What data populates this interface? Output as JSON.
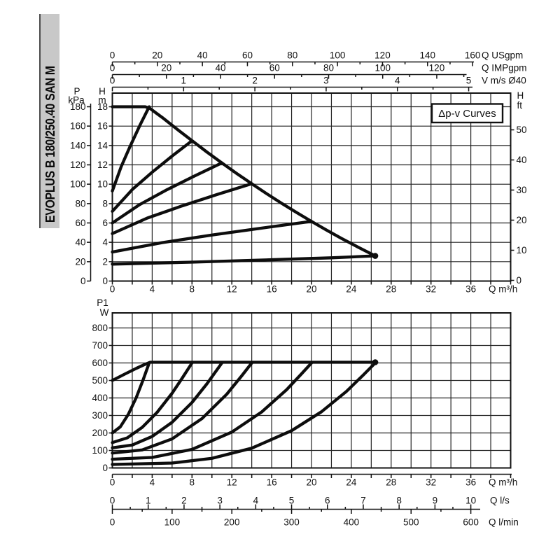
{
  "sidebar": {
    "model": "EVOPLUS B 180/250.40 SAN M"
  },
  "chart_data": [
    {
      "id": "head-chart",
      "type": "line",
      "annotation": "Δp-v Curves",
      "x_axis": {
        "label": "Q m³/h",
        "min": 0,
        "max": 40,
        "grid_step": 2,
        "label_step": 4,
        "labels": [
          0,
          4,
          8,
          12,
          16,
          20,
          24,
          28,
          32,
          36
        ]
      },
      "y_axis": {
        "label_lines": [
          "H",
          "m"
        ],
        "min": 0,
        "max": 18,
        "grid_step": 2,
        "labels": [
          0,
          2,
          4,
          6,
          8,
          10,
          12,
          14,
          16,
          18
        ]
      },
      "y_axis_kpa": {
        "label_lines": [
          "P",
          "kPa"
        ],
        "labels": [
          0,
          20,
          40,
          60,
          80,
          100,
          120,
          140,
          160,
          180
        ]
      },
      "y_axis_right": {
        "label_lines": [
          "H",
          "ft"
        ],
        "labels": [
          0,
          10,
          20,
          30,
          40,
          50
        ]
      },
      "top_axes": [
        {
          "label": "Q USgpm",
          "unit_to_m3h": 0.2261,
          "max_unit": 160,
          "minor_step": 10,
          "labels": [
            0,
            20,
            40,
            60,
            80,
            100,
            120,
            140,
            160
          ]
        },
        {
          "label": "Q IMPgpm",
          "unit_to_m3h": 0.2715,
          "max_unit": 130,
          "minor_step": 10,
          "labels": [
            0,
            20,
            40,
            60,
            80,
            100,
            120
          ]
        },
        {
          "label": "V m/s Ø40",
          "unit_to_m3h": 7.157,
          "max_unit": 5,
          "minor_step": 0.5,
          "labels": [
            0,
            1,
            2,
            3,
            4,
            5
          ]
        }
      ],
      "series": [
        {
          "name": "max-speed-head",
          "end_dot": true,
          "points": [
            [
              0,
              18
            ],
            [
              3.3,
              18
            ],
            [
              3.75,
              17.85
            ],
            [
              4.4,
              17.35
            ],
            [
              5,
              16.9
            ],
            [
              6.5,
              15.68
            ],
            [
              8,
              14.5
            ],
            [
              9.5,
              13.32
            ],
            [
              11,
              12.2
            ],
            [
              12.5,
              11.1
            ],
            [
              14,
              10.05
            ],
            [
              15.5,
              9.02
            ],
            [
              17,
              8.03
            ],
            [
              18.5,
              7.08
            ],
            [
              20,
              6.16
            ],
            [
              21.5,
              5.27
            ],
            [
              23,
              4.41
            ],
            [
              24.7,
              3.49
            ],
            [
              26.4,
              2.6
            ]
          ]
        },
        {
          "name": "dpv-head-1",
          "points": [
            [
              0,
              9.3
            ],
            [
              0.9,
              11.85
            ],
            [
              1.8,
              13.95
            ],
            [
              2.8,
              16.15
            ],
            [
              3.7,
              18
            ]
          ]
        },
        {
          "name": "dpv-head-2",
          "points": [
            [
              0,
              7.2
            ],
            [
              2,
              9.45
            ],
            [
              4,
              11.24
            ],
            [
              6,
              12.91
            ],
            [
              8,
              14.49
            ]
          ]
        },
        {
          "name": "dpv-head-3",
          "points": [
            [
              0,
              6.0
            ],
            [
              2.75,
              7.9
            ],
            [
              5.5,
              9.44
            ],
            [
              8.25,
              10.85
            ],
            [
              11,
              12.2
            ]
          ]
        },
        {
          "name": "dpv-head-4",
          "points": [
            [
              0,
              4.9
            ],
            [
              3.5,
              6.5
            ],
            [
              7,
              7.76
            ],
            [
              10.5,
              8.93
            ],
            [
              14,
              10.05
            ]
          ]
        },
        {
          "name": "dpv-head-5",
          "points": [
            [
              0,
              3.0
            ],
            [
              5,
              3.97
            ],
            [
              10,
              4.75
            ],
            [
              15,
              5.47
            ],
            [
              20,
              6.16
            ]
          ]
        },
        {
          "name": "dpv-head-6",
          "points": [
            [
              0,
              1.75
            ],
            [
              8,
              1.95
            ],
            [
              16,
              2.2
            ],
            [
              22,
              2.4
            ],
            [
              26.4,
              2.6
            ]
          ]
        }
      ]
    },
    {
      "id": "power-chart",
      "type": "line",
      "y_axis": {
        "label_lines": [
          "P1",
          "W"
        ],
        "min": 0,
        "max": 800,
        "grid_step": 100,
        "labels": [
          0,
          100,
          200,
          300,
          400,
          500,
          600,
          700,
          800
        ]
      },
      "x_axis": {
        "label": "Q m³/h",
        "min": 0,
        "max": 40,
        "grid_step": 2,
        "label_step": 4,
        "labels": [
          0,
          4,
          8,
          12,
          16,
          20,
          24,
          28,
          32,
          36
        ]
      },
      "bottom_axes": [
        {
          "label": "Q l/s",
          "unit_to_m3h": 3.6,
          "max_unit": 10,
          "minor_step": 0.5,
          "labels": [
            0,
            1,
            2,
            3,
            4,
            5,
            6,
            7,
            8,
            9,
            10
          ]
        },
        {
          "label": "Q l/min",
          "unit_to_m3h": 0.06,
          "max_unit": 600,
          "minor_step": 50,
          "labels": [
            0,
            100,
            200,
            300,
            400,
            500,
            600
          ]
        }
      ],
      "series": [
        {
          "name": "p1-max-speed",
          "end_dot": true,
          "points": [
            [
              0,
              500
            ],
            [
              1.2,
              535
            ],
            [
              2.4,
              569
            ],
            [
              3.2,
              590
            ],
            [
              3.8,
              604
            ],
            [
              26.4,
              604
            ]
          ]
        },
        {
          "name": "p1-dpv-1",
          "points": [
            [
              0,
              200
            ],
            [
              0.8,
              235
            ],
            [
              1.6,
              306
            ],
            [
              2.4,
              402
            ],
            [
              3.1,
              505
            ],
            [
              3.7,
              600
            ]
          ]
        },
        {
          "name": "p1-dpv-2",
          "points": [
            [
              0,
              145
            ],
            [
              1.5,
              172
            ],
            [
              3,
              232
            ],
            [
              4.5,
              318
            ],
            [
              6,
              427
            ],
            [
              7,
              512
            ],
            [
              8,
              600
            ]
          ]
        },
        {
          "name": "p1-dpv-3",
          "points": [
            [
              0,
              115
            ],
            [
              2,
              131
            ],
            [
              4,
              180
            ],
            [
              6,
              261
            ],
            [
              8,
              374
            ],
            [
              9.5,
              481
            ],
            [
              11,
              600
            ]
          ]
        },
        {
          "name": "p1-dpv-4",
          "points": [
            [
              0,
              85
            ],
            [
              3,
              103
            ],
            [
              6,
              166
            ],
            [
              9,
              282
            ],
            [
              11.5,
              422
            ],
            [
              13,
              527
            ],
            [
              14,
              600
            ]
          ]
        },
        {
          "name": "p1-dpv-5",
          "points": [
            [
              0,
              50
            ],
            [
              4,
              60
            ],
            [
              8,
              106
            ],
            [
              12,
              205
            ],
            [
              15,
              320
            ],
            [
              17.5,
              447
            ],
            [
              19,
              538
            ],
            [
              20,
              600
            ]
          ]
        },
        {
          "name": "p1-dpv-6",
          "points": [
            [
              0,
              20
            ],
            [
              6,
              28
            ],
            [
              10,
              55
            ],
            [
              14,
              113
            ],
            [
              18,
              213
            ],
            [
              21,
              321
            ],
            [
              23.5,
              437
            ],
            [
              25.2,
              531
            ],
            [
              26.4,
              600
            ]
          ]
        }
      ]
    }
  ]
}
